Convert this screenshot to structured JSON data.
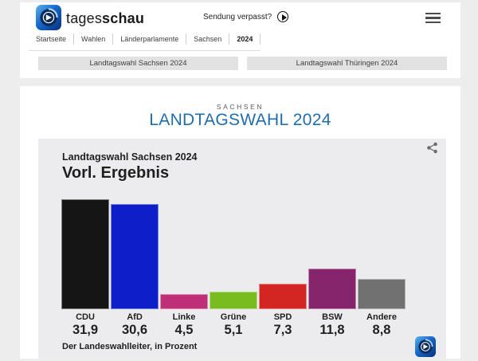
{
  "header": {
    "brand_regular": "tages",
    "brand_bold": "schau",
    "broadcast_link": "Sendung verpasst?",
    "icons": {
      "logo": "tagesschau-globe-icon",
      "play": "play-circle-icon",
      "menu": "hamburger-icon"
    }
  },
  "breadcrumb": {
    "items": [
      "Startseite",
      "Wahlen",
      "Länderparlamente",
      "Sachsen",
      "2024"
    ],
    "current": "2024"
  },
  "nav_buttons": [
    {
      "label": "Landtagswahl Sachsen 2024"
    },
    {
      "label": "Landtagswahl Thüringen 2024"
    }
  ],
  "main": {
    "kicker": "SACHSEN",
    "title": "LANDTAGSWAHL 2024",
    "title_color": "#1f6cae"
  },
  "chart": {
    "subtitle": "Landtagswahl Sachsen 2024",
    "title": "Vorl. Ergebnis",
    "source": "Der Landeswahlleiter, in Prozent",
    "share_icon": "share-icon",
    "logo_icon": "tagesschau-globe-icon"
  },
  "chart_data": {
    "type": "bar",
    "title": "Vorl. Ergebnis",
    "subtitle": "Landtagswahl Sachsen 2024",
    "categories": [
      "CDU",
      "AfD",
      "Linke",
      "Grüne",
      "SPD",
      "BSW",
      "Andere"
    ],
    "values": [
      31.9,
      30.6,
      4.5,
      5.1,
      7.3,
      11.8,
      8.8
    ],
    "value_labels": [
      "31,9",
      "30,6",
      "4,5",
      "5,1",
      "7,3",
      "11,8",
      "8,8"
    ],
    "colors": [
      "#151515",
      "#0c1fc8",
      "#be2f77",
      "#78bd1d",
      "#d32521",
      "#87256c",
      "#717171"
    ],
    "unit": "Prozent",
    "source": "Der Landeswahlleiter, in Prozent",
    "ylim": [
      0,
      32
    ],
    "grid": false,
    "legend": false
  }
}
